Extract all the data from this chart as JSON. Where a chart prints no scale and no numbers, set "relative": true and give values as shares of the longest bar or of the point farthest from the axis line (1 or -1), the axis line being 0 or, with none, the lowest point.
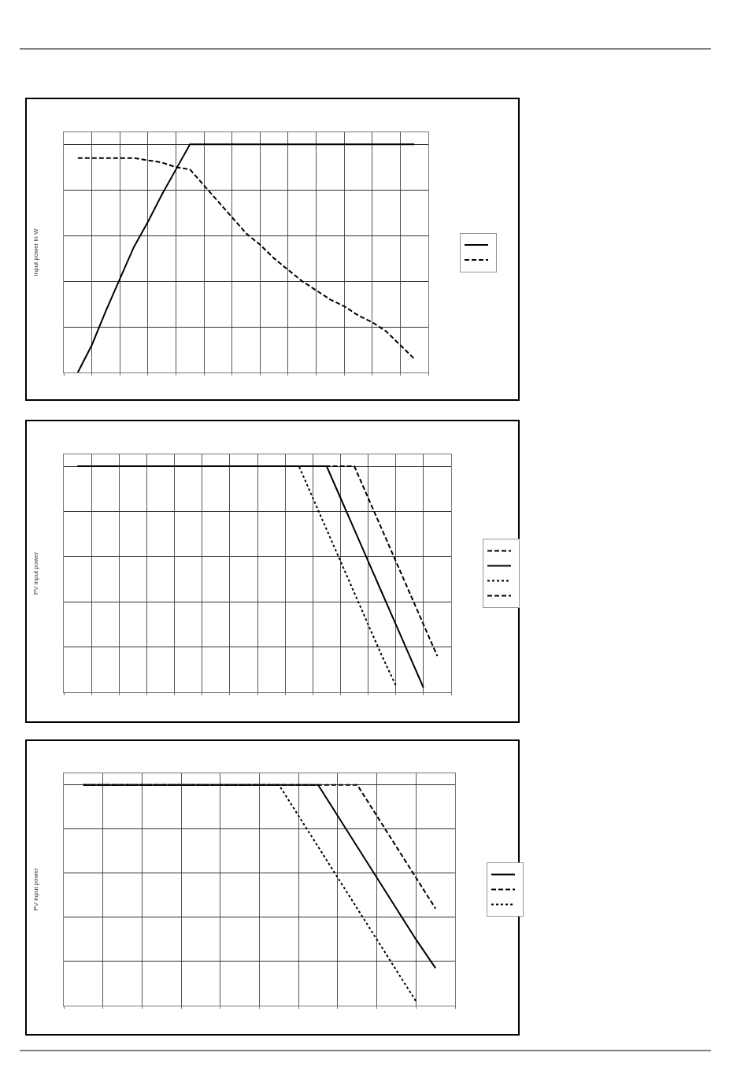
{
  "chart_data": [
    {
      "type": "line",
      "ylabel": "Input power in W",
      "relative": true,
      "grid": true,
      "tick_labels": false,
      "categories": [
        null,
        null,
        null,
        null,
        null,
        null,
        null,
        null,
        null,
        null,
        null,
        null,
        null,
        null,
        null,
        null,
        null,
        null,
        null,
        null,
        null,
        null,
        null,
        null,
        null,
        null,
        null
      ],
      "series": [
        {
          "color": "#000000",
          "line_style": "solid",
          "values": [
            null,
            0,
            0.12,
            0.27,
            0.41,
            0.55,
            0.66,
            0.78,
            0.89,
            1.0,
            1.0,
            1.0,
            1.0,
            1.0,
            1.0,
            1.0,
            1.0,
            1.0,
            1.0,
            1.0,
            1.0,
            1.0,
            1.0,
            1.0,
            1.0,
            1.0,
            null
          ]
        },
        {
          "color": "#000000",
          "line_style": "dashed",
          "values": [
            null,
            0.94,
            0.94,
            0.94,
            0.94,
            0.94,
            0.93,
            0.92,
            0.9,
            0.89,
            0.82,
            0.75,
            0.68,
            0.61,
            0.56,
            0.5,
            0.45,
            0.4,
            0.36,
            0.32,
            0.29,
            0.25,
            0.22,
            0.18,
            0.12,
            0.06,
            null
          ]
        }
      ]
    },
    {
      "type": "line",
      "ylabel": "PV input power",
      "relative": true,
      "grid": true,
      "tick_labels": false,
      "categories": [
        null,
        null,
        null,
        null,
        null,
        null,
        null,
        null,
        null,
        null,
        null,
        null,
        null,
        null,
        null,
        null,
        null,
        null,
        null,
        null,
        null,
        null,
        null,
        null,
        null,
        null,
        null,
        null,
        null
      ],
      "series": [
        {
          "color": "#000000",
          "line_style": "dashed",
          "values": [
            null,
            null,
            null,
            null,
            null,
            null,
            null,
            null,
            null,
            null,
            null,
            null,
            null,
            null,
            null,
            null,
            null,
            null,
            null,
            null,
            null,
            null,
            null,
            null,
            null,
            null,
            null,
            null,
            null
          ]
        },
        {
          "color": "#000000",
          "line_style": "solid",
          "values": [
            null,
            1.0,
            1.0,
            1.0,
            1.0,
            1.0,
            1.0,
            1.0,
            1.0,
            1.0,
            1.0,
            1.0,
            1.0,
            1.0,
            1.0,
            1.0,
            1.0,
            1.0,
            1.0,
            1.0,
            0.86,
            0.72,
            0.58,
            0.44,
            0.3,
            0.16,
            0.02,
            null,
            null
          ]
        },
        {
          "color": "#000000",
          "line_style": "dotted",
          "values": [
            null,
            1.0,
            1.0,
            1.0,
            1.0,
            1.0,
            1.0,
            1.0,
            1.0,
            1.0,
            1.0,
            1.0,
            1.0,
            1.0,
            1.0,
            1.0,
            1.0,
            1.0,
            0.86,
            0.72,
            0.58,
            0.44,
            0.3,
            0.16,
            0.03,
            null,
            null,
            null,
            null
          ]
        },
        {
          "color": "#000000",
          "line_style": "dashed",
          "values": [
            null,
            1.0,
            1.0,
            1.0,
            1.0,
            1.0,
            1.0,
            1.0,
            1.0,
            1.0,
            1.0,
            1.0,
            1.0,
            1.0,
            1.0,
            1.0,
            1.0,
            1.0,
            1.0,
            1.0,
            1.0,
            1.0,
            0.86,
            0.72,
            0.58,
            0.44,
            0.3,
            0.16,
            null
          ]
        }
      ]
    },
    {
      "type": "line",
      "ylabel": "PV input power",
      "relative": true,
      "grid": true,
      "tick_labels": false,
      "categories": [
        null,
        null,
        null,
        null,
        null,
        null,
        null,
        null,
        null,
        null,
        null,
        null,
        null,
        null,
        null,
        null,
        null,
        null,
        null,
        null,
        null
      ],
      "series": [
        {
          "color": "#000000",
          "line_style": "solid",
          "values": [
            null,
            1.0,
            1.0,
            1.0,
            1.0,
            1.0,
            1.0,
            1.0,
            1.0,
            1.0,
            1.0,
            1.0,
            1.0,
            1.0,
            0.86,
            0.72,
            0.58,
            0.44,
            0.3,
            0.17,
            null
          ]
        },
        {
          "color": "#000000",
          "line_style": "dashed",
          "values": [
            null,
            1.0,
            1.0,
            1.0,
            1.0,
            1.0,
            1.0,
            1.0,
            1.0,
            1.0,
            1.0,
            1.0,
            1.0,
            1.0,
            1.0,
            1.0,
            0.86,
            0.72,
            0.58,
            0.44,
            null
          ]
        },
        {
          "color": "#000000",
          "line_style": "dotted",
          "values": [
            null,
            1.0,
            1.0,
            1.0,
            1.0,
            1.0,
            1.0,
            1.0,
            1.0,
            1.0,
            1.0,
            1.0,
            0.86,
            0.72,
            0.58,
            0.44,
            0.3,
            0.16,
            0.02,
            null,
            null
          ]
        }
      ]
    }
  ]
}
